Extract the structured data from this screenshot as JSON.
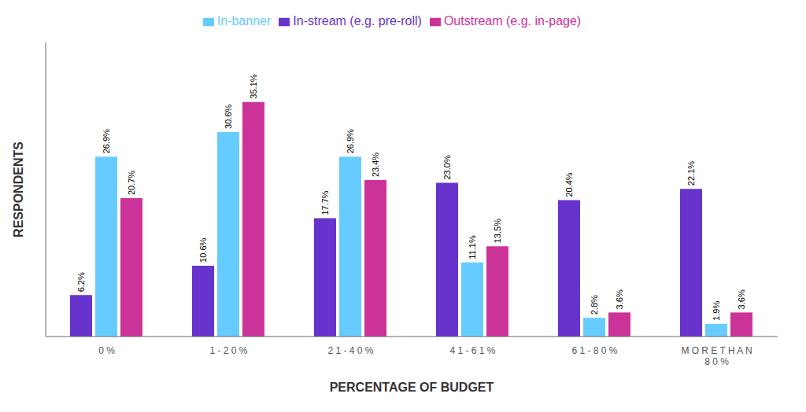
{
  "chart_data": {
    "type": "bar",
    "categories": [
      "0 %",
      "1 - 2 0 %",
      "2 1 - 4 0 %",
      "4 1 - 6 1 %",
      "6 1 - 8 0 %",
      "M O R E  T H A N\n8 0 %"
    ],
    "series": [
      {
        "name": "In-stream (e.g. pre-roll)",
        "color": "#6633cc",
        "values": [
          6.2,
          10.6,
          17.7,
          23.0,
          20.4,
          22.1
        ],
        "value_labels": [
          "6.2%",
          "10.6%",
          "17.7%",
          "23.0%",
          "20.4%",
          "22.1%"
        ]
      },
      {
        "name": "In-banner",
        "color": "#66ccff",
        "values": [
          26.9,
          30.6,
          26.9,
          11.1,
          2.8,
          1.9
        ],
        "value_labels": [
          "26.9%",
          "30.6%",
          "26.9%",
          "11.1%",
          "2.8%",
          "1.9%"
        ]
      },
      {
        "name": "Outstream (e.g. in-page)",
        "color": "#cc3399",
        "values": [
          20.7,
          35.1,
          23.4,
          13.5,
          3.6,
          3.6
        ],
        "value_labels": [
          "20.7%",
          "35.1%",
          "23.4%",
          "13.5%",
          "3.6%",
          "3.6%"
        ]
      }
    ],
    "xlabel": "PERCENTAGE OF BUDGET",
    "ylabel": "RESPONDENTS",
    "ylim": [
      0,
      44
    ],
    "grid": false,
    "legend": "top",
    "data_labels": true,
    "tick_labels": "x"
  }
}
